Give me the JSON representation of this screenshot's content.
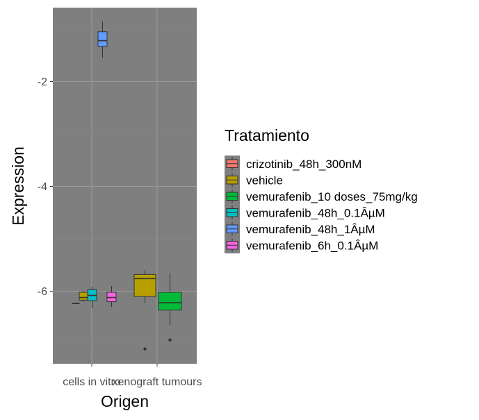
{
  "chart_data": {
    "type": "boxplot",
    "xlabel": "Origen",
    "ylabel": "Expression",
    "categories": [
      "cells in vitro",
      "xenograft tumours"
    ],
    "y_ticks": [
      -2,
      -4,
      -6
    ],
    "ylim": [
      -7.4,
      -0.6
    ],
    "grid": true,
    "legend": {
      "title": "Tratamiento",
      "position": "right",
      "entries": [
        {
          "label": "crizotinib_48h_300nM",
          "color": "#F8766D"
        },
        {
          "label": "vehicle",
          "color": "#B79F00"
        },
        {
          "label": "vemurafenib_10 doses_75mg/kg",
          "color": "#00BA38"
        },
        {
          "label": "vemurafenib_48h_0.1ÂµM",
          "color": "#00BFC4"
        },
        {
          "label": "vemurafenib_48h_1ÂµM",
          "color": "#619CFF"
        },
        {
          "label": "vemurafenib_6h_0.1ÂµM",
          "color": "#F564E3"
        }
      ]
    },
    "boxes": [
      {
        "category": "cells in vitro",
        "series": "crizotinib_48h_300nM",
        "color": "#F8766D",
        "min": -6.23,
        "q1": -6.23,
        "median": -6.23,
        "q3": -6.23,
        "max": -6.23,
        "outliers": []
      },
      {
        "category": "cells in vitro",
        "series": "vehicle",
        "color": "#B79F00",
        "min": -6.2,
        "q1": -6.17,
        "median": -6.12,
        "q3": -6.02,
        "max": -5.99,
        "outliers": []
      },
      {
        "category": "cells in vitro",
        "series": "vemurafenib_48h_0.1ÂµM",
        "color": "#00BFC4",
        "min": -6.32,
        "q1": -6.18,
        "median": -6.08,
        "q3": -5.97,
        "max": -5.91,
        "outliers": []
      },
      {
        "category": "cells in vitro",
        "series": "vemurafenib_48h_1ÂµM",
        "color": "#619CFF",
        "min": -1.55,
        "q1": -1.33,
        "median": -1.22,
        "q3": -1.05,
        "max": -0.85,
        "outliers": []
      },
      {
        "category": "cells in vitro",
        "series": "vemurafenib_6h_0.1ÂµM",
        "color": "#F564E3",
        "min": -6.3,
        "q1": -6.2,
        "median": -6.12,
        "q3": -6.02,
        "max": -5.9,
        "outliers": []
      },
      {
        "category": "xenograft tumours",
        "series": "vehicle",
        "color": "#B79F00",
        "min": -6.22,
        "q1": -6.1,
        "median": -5.76,
        "q3": -5.68,
        "max": -5.6,
        "outliers": [
          -7.1
        ]
      },
      {
        "category": "xenograft tumours",
        "series": "vemurafenib_10 doses_75mg/kg",
        "color": "#00BA38",
        "min": -6.65,
        "q1": -6.36,
        "median": -6.22,
        "q3": -6.02,
        "max": -5.65,
        "outliers": [
          -6.93
        ]
      }
    ]
  }
}
